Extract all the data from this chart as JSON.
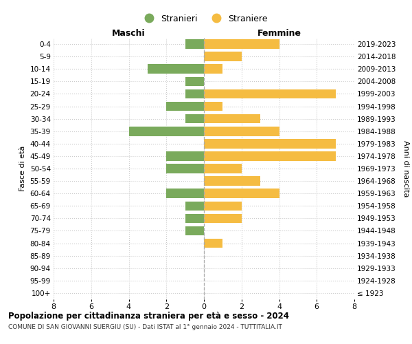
{
  "age_groups": [
    "100+",
    "95-99",
    "90-94",
    "85-89",
    "80-84",
    "75-79",
    "70-74",
    "65-69",
    "60-64",
    "55-59",
    "50-54",
    "45-49",
    "40-44",
    "35-39",
    "30-34",
    "25-29",
    "20-24",
    "15-19",
    "10-14",
    "5-9",
    "0-4"
  ],
  "birth_years": [
    "≤ 1923",
    "1924-1928",
    "1929-1933",
    "1934-1938",
    "1939-1943",
    "1944-1948",
    "1949-1953",
    "1954-1958",
    "1959-1963",
    "1964-1968",
    "1969-1973",
    "1974-1978",
    "1979-1983",
    "1984-1988",
    "1989-1993",
    "1994-1998",
    "1999-2003",
    "2004-2008",
    "2009-2013",
    "2014-2018",
    "2019-2023"
  ],
  "maschi": [
    0,
    0,
    0,
    0,
    0,
    1,
    1,
    1,
    2,
    0,
    2,
    2,
    0,
    4,
    1,
    2,
    1,
    1,
    3,
    0,
    1
  ],
  "femmine": [
    0,
    0,
    0,
    0,
    1,
    0,
    2,
    2,
    4,
    3,
    2,
    7,
    7,
    4,
    3,
    1,
    7,
    0,
    1,
    2,
    4
  ],
  "color_maschi": "#7aaa5c",
  "color_femmine": "#f5bc42",
  "title": "Popolazione per cittadinanza straniera per età e sesso - 2024",
  "subtitle": "COMUNE DI SAN GIOVANNI SUERGIU (SU) - Dati ISTAT al 1° gennaio 2024 - TUTTITALIA.IT",
  "xlabel_left": "Maschi",
  "xlabel_right": "Femmine",
  "ylabel_left": "Fasce di età",
  "ylabel_right": "Anni di nascita",
  "legend_maschi": "Stranieri",
  "legend_femmine": "Straniere",
  "xlim": 8,
  "bg_color": "#ffffff",
  "grid_color": "#cccccc",
  "bar_height": 0.75
}
